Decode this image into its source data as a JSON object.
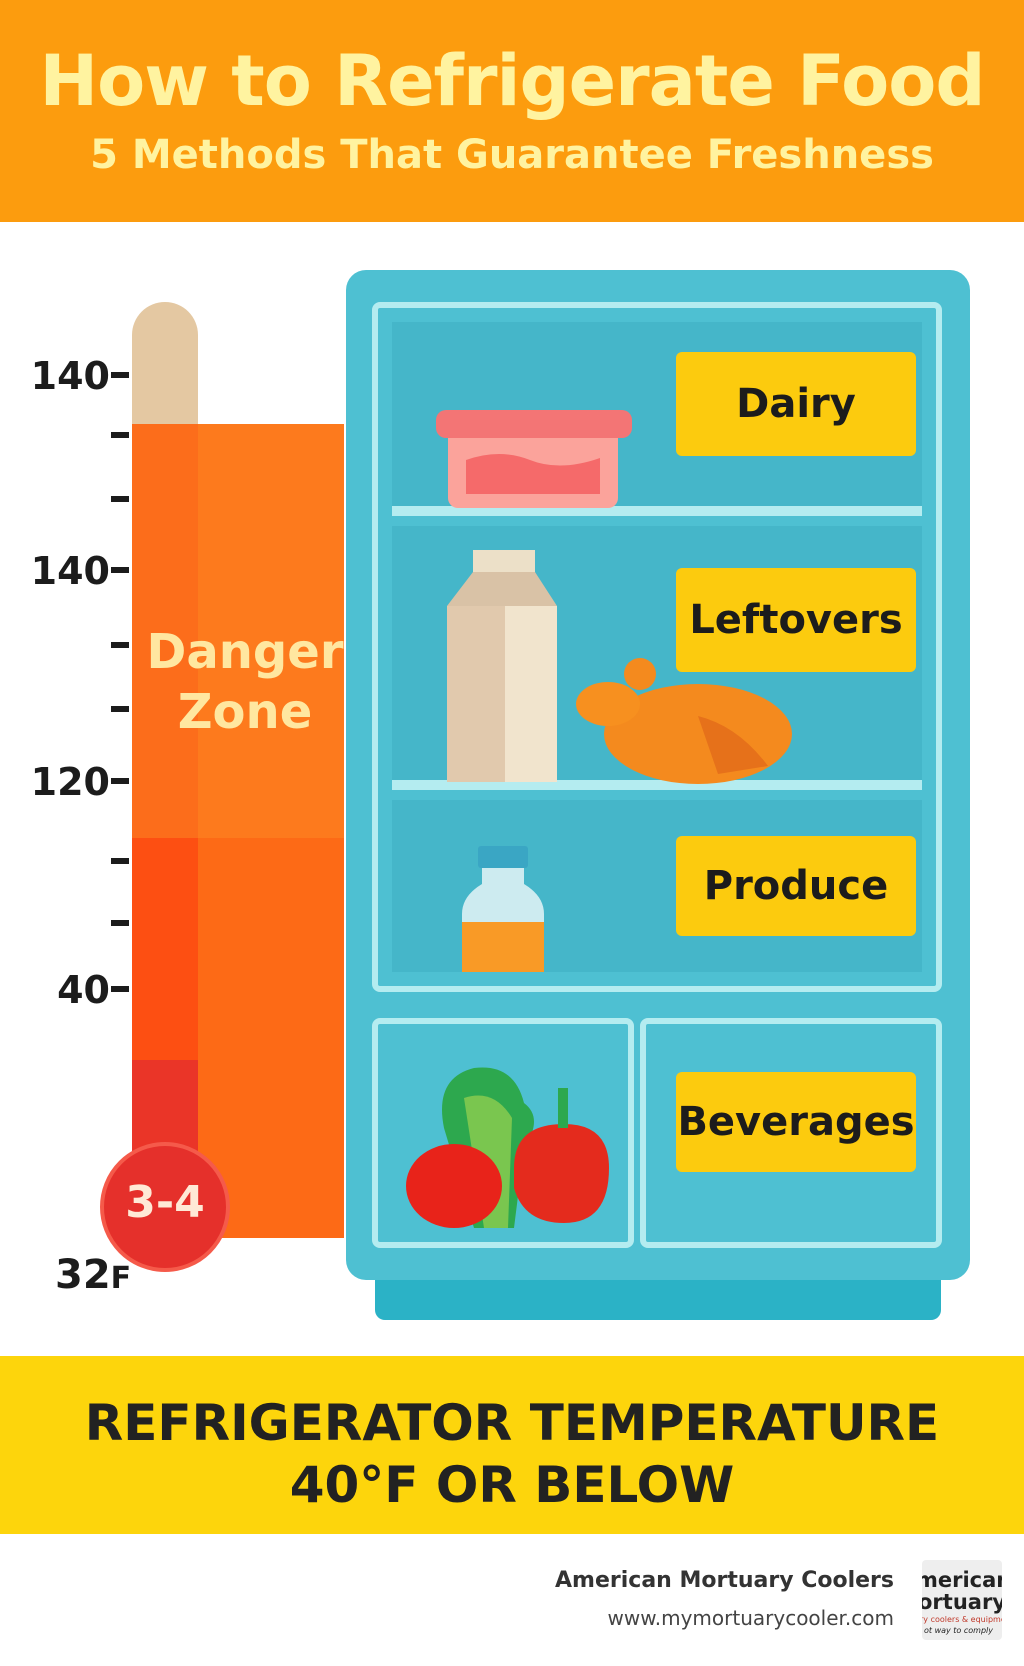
{
  "header": {
    "title": "How to Refrigerate Food",
    "subtitle": "5 Methods That Guarantee Freshness"
  },
  "thermometer": {
    "tick_labels": [
      "140",
      "140",
      "120",
      "40"
    ],
    "zone_label_line1": "Danger",
    "zone_label_line2": "Zone",
    "bulb_label": "3-4",
    "bottom_value": "32",
    "bottom_unit": "F"
  },
  "fridge": {
    "compartments": [
      {
        "label": "Dairy"
      },
      {
        "label": "Leftovers"
      },
      {
        "label": "Produce"
      },
      {
        "label": "Beverages"
      }
    ]
  },
  "banner": {
    "line1": "REFRIGERATOR TEMPERATURE",
    "line2": "40°F OR BELOW"
  },
  "footer": {
    "brand": "American Mortuary Coolers",
    "url": "www.mymortuarycooler.com",
    "logo_line1": "merican",
    "logo_line2": "ortuary",
    "logo_line3": "ry coolers & equipment",
    "logo_line4": "ot way to comply"
  },
  "colors": {
    "header_bg": "#fc9c0e",
    "header_text": "#fff3a0",
    "fridge": "#4ec0d2",
    "tag": "#fccb0e",
    "banner": "#fdd50c",
    "danger": "#fd6a16"
  },
  "icons": [
    "food-container-icon",
    "milk-carton-icon",
    "roast-chicken-icon",
    "bottle-icon",
    "vegetables-icon"
  ]
}
